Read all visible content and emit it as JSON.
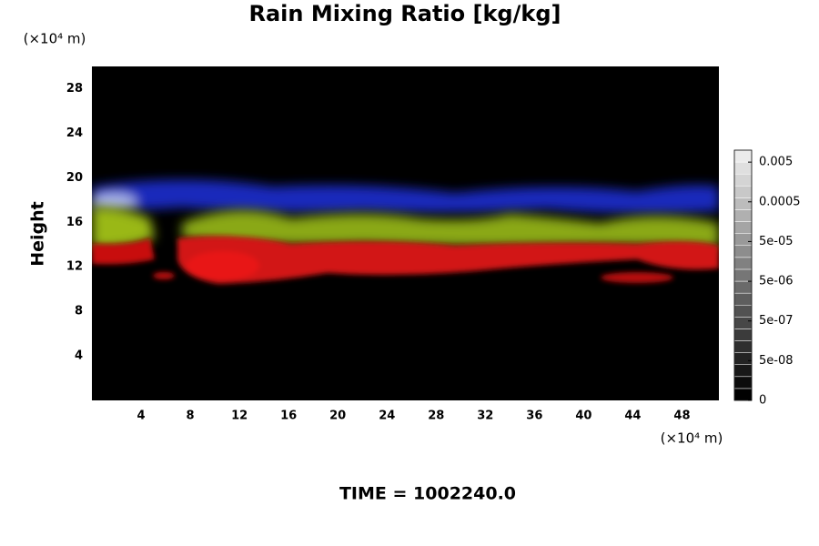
{
  "chart_data": {
    "type": "volume-render",
    "title": "Rain Mixing Ratio [kg/kg]",
    "ylabel": "Height",
    "y_unit": "(×10⁴ m)",
    "x_unit": "(×10⁴ m)",
    "footer": "TIME = 1002240.0",
    "xlim": [
      0,
      51
    ],
    "xticks": [
      4,
      8,
      12,
      16,
      20,
      24,
      28,
      32,
      36,
      40,
      44,
      48
    ],
    "ylim": [
      0,
      30
    ],
    "yticks": [
      4,
      8,
      12,
      16,
      20,
      24,
      28
    ],
    "colorbar_log": true,
    "colorbar_lim": [
      5e-09,
      0.01
    ],
    "colorbar_ticks": [
      0,
      {
        "value": 5e-08,
        "label": "5e-08"
      },
      {
        "value": 5e-07,
        "label": "5e-07"
      },
      {
        "value": 5e-06,
        "label": "5e-06"
      },
      {
        "value": 5e-05,
        "label": "5e-05"
      },
      0.0005,
      0.005
    ]
  }
}
